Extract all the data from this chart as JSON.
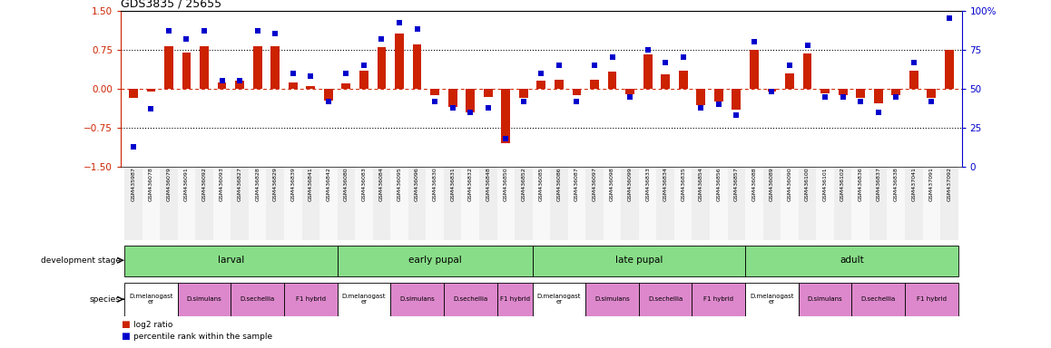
{
  "title": "GDS3835 / 25655",
  "sample_ids": [
    "GSM435987",
    "GSM436078",
    "GSM436079",
    "GSM436091",
    "GSM436092",
    "GSM436093",
    "GSM436827",
    "GSM436828",
    "GSM436829",
    "GSM436839",
    "GSM436841",
    "GSM436842",
    "GSM436080",
    "GSM436083",
    "GSM436084",
    "GSM436095",
    "GSM436096",
    "GSM436830",
    "GSM436831",
    "GSM436832",
    "GSM436848",
    "GSM436850",
    "GSM436852",
    "GSM436085",
    "GSM436086",
    "GSM436087",
    "GSM436097",
    "GSM436098",
    "GSM436099",
    "GSM436833",
    "GSM436834",
    "GSM436835",
    "GSM436854",
    "GSM436856",
    "GSM436857",
    "GSM436088",
    "GSM436089",
    "GSM436090",
    "GSM436100",
    "GSM436101",
    "GSM436102",
    "GSM436836",
    "GSM436837",
    "GSM436838",
    "GSM437041",
    "GSM437091",
    "GSM437092"
  ],
  "log2_ratio": [
    -0.18,
    -0.05,
    0.82,
    0.7,
    0.82,
    0.12,
    0.15,
    0.82,
    0.82,
    0.12,
    0.05,
    -0.22,
    0.1,
    0.35,
    0.8,
    1.05,
    0.85,
    -0.13,
    -0.35,
    -0.45,
    -0.15,
    -1.05,
    -0.18,
    0.15,
    0.18,
    -0.13,
    0.18,
    0.32,
    -0.1,
    0.65,
    0.28,
    0.35,
    -0.32,
    -0.25,
    -0.4,
    0.75,
    -0.05,
    0.3,
    0.68,
    -0.08,
    -0.12,
    -0.18,
    -0.28,
    -0.12,
    0.35,
    -0.18,
    0.75
  ],
  "percentile_rank": [
    13,
    37,
    87,
    82,
    87,
    55,
    55,
    87,
    85,
    60,
    58,
    42,
    60,
    65,
    82,
    92,
    88,
    42,
    38,
    35,
    38,
    18,
    42,
    60,
    65,
    42,
    65,
    70,
    45,
    75,
    67,
    70,
    38,
    40,
    33,
    80,
    48,
    65,
    78,
    45,
    45,
    42,
    35,
    45,
    67,
    42,
    95
  ],
  "dev_stages": [
    {
      "label": "larval",
      "start": 0,
      "end": 11
    },
    {
      "label": "early pupal",
      "start": 12,
      "end": 22
    },
    {
      "label": "late pupal",
      "start": 23,
      "end": 34
    },
    {
      "label": "adult",
      "start": 35,
      "end": 46
    }
  ],
  "species_groups": [
    {
      "label": "D.melanogast\ner",
      "start": 0,
      "end": 2,
      "pink": false
    },
    {
      "label": "D.simulans",
      "start": 3,
      "end": 5,
      "pink": true
    },
    {
      "label": "D.sechellia",
      "start": 6,
      "end": 8,
      "pink": true
    },
    {
      "label": "F1 hybrid",
      "start": 9,
      "end": 11,
      "pink": true
    },
    {
      "label": "D.melanogast\ner",
      "start": 12,
      "end": 14,
      "pink": false
    },
    {
      "label": "D.simulans",
      "start": 15,
      "end": 17,
      "pink": true
    },
    {
      "label": "D.sechellia",
      "start": 18,
      "end": 20,
      "pink": true
    },
    {
      "label": "F1 hybrid",
      "start": 21,
      "end": 22,
      "pink": true
    },
    {
      "label": "D.melanogast\ner",
      "start": 23,
      "end": 25,
      "pink": false
    },
    {
      "label": "D.simulans",
      "start": 26,
      "end": 28,
      "pink": true
    },
    {
      "label": "D.sechellia",
      "start": 29,
      "end": 31,
      "pink": true
    },
    {
      "label": "F1 hybrid",
      "start": 32,
      "end": 34,
      "pink": true
    },
    {
      "label": "D.melanogast\ner",
      "start": 35,
      "end": 37,
      "pink": false
    },
    {
      "label": "D.simulans",
      "start": 38,
      "end": 40,
      "pink": true
    },
    {
      "label": "D.sechellia",
      "start": 41,
      "end": 43,
      "pink": true
    },
    {
      "label": "F1 hybrid",
      "start": 44,
      "end": 46,
      "pink": true
    }
  ],
  "bar_color": "#cc2200",
  "point_color": "#0000cc",
  "dev_color": "#88dd88",
  "pink_color": "#dd88cc",
  "white_color": "#ffffff",
  "yticks_left": [
    -1.5,
    -0.75,
    0,
    0.75,
    1.5
  ],
  "yticks_right": [
    0,
    25,
    50,
    75,
    100
  ]
}
